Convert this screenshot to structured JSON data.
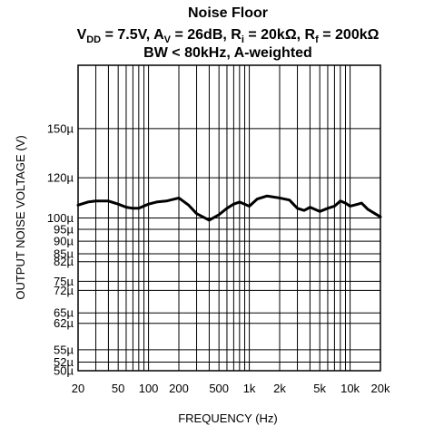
{
  "chart_data": {
    "type": "line",
    "title": "Noise Floor",
    "subtitle_line1": {
      "vdd_sym": "V",
      "vdd_sub": "DD",
      "vdd_val": " = 7.5V, ",
      "av_sym": "A",
      "av_sub": "V",
      "av_val": " = 26dB, ",
      "ri_sym": "R",
      "ri_sub": "i",
      "ri_val": " = 20kΩ, ",
      "rf_sym": "R",
      "rf_sub": "f",
      "rf_val": " = 200kΩ"
    },
    "subtitle_line2": "BW < 80kHz, A-weighted",
    "xlabel": "FREQUENCY (Hz)",
    "ylabel": "OUTPUT NOISE VOLTAGE (V)",
    "x_scale": "log",
    "xlim": [
      20,
      20000
    ],
    "ylim": [
      50,
      200
    ],
    "grid": true,
    "x_ticks": [
      {
        "value": 20,
        "label": "20"
      },
      {
        "value": 50,
        "label": "50"
      },
      {
        "value": 100,
        "label": "100"
      },
      {
        "value": 200,
        "label": "200"
      },
      {
        "value": 500,
        "label": "500"
      },
      {
        "value": 1000,
        "label": "1k"
      },
      {
        "value": 2000,
        "label": "2k"
      },
      {
        "value": 5000,
        "label": "5k"
      },
      {
        "value": 10000,
        "label": "10k"
      },
      {
        "value": 20000,
        "label": "20k"
      }
    ],
    "y_ticks": [
      {
        "value": 50,
        "label": "50µ"
      },
      {
        "value": 52,
        "label": "52µ"
      },
      {
        "value": 55,
        "label": "55µ"
      },
      {
        "value": 62,
        "label": "62µ"
      },
      {
        "value": 65,
        "label": "65µ"
      },
      {
        "value": 72,
        "label": "72µ"
      },
      {
        "value": 75,
        "label": "75µ"
      },
      {
        "value": 82,
        "label": "82µ"
      },
      {
        "value": 85,
        "label": "85µ"
      },
      {
        "value": 90,
        "label": "90µ"
      },
      {
        "value": 95,
        "label": "95µ"
      },
      {
        "value": 100,
        "label": "100µ"
      },
      {
        "value": 120,
        "label": "120µ"
      },
      {
        "value": 150,
        "label": "150µ"
      }
    ],
    "x_grid": [
      20,
      30,
      40,
      50,
      60,
      70,
      80,
      90,
      100,
      200,
      300,
      400,
      500,
      600,
      700,
      800,
      900,
      1000,
      2000,
      3000,
      4000,
      5000,
      6000,
      7000,
      8000,
      9000,
      10000,
      20000
    ],
    "y_grid": [
      50,
      52,
      55,
      62,
      65,
      72,
      75,
      82,
      85,
      90,
      95,
      100,
      120,
      150,
      200
    ],
    "series": [
      {
        "x": [
          20,
          25,
          30,
          40,
          50,
          60,
          70,
          80,
          100,
          120,
          150,
          200,
          250,
          300,
          400,
          500,
          600,
          700,
          800,
          1000,
          1200,
          1500,
          2000,
          2500,
          3000,
          3500,
          4000,
          5000,
          6000,
          7000,
          8000,
          9000,
          10000,
          11000,
          12000,
          13000,
          15000,
          20000
        ],
        "y": [
          106,
          107.5,
          108,
          108,
          106.5,
          105,
          104.5,
          104.5,
          106.5,
          107.5,
          108,
          109.5,
          106,
          102,
          99,
          101.5,
          104.5,
          106.5,
          107.5,
          105.5,
          109,
          110.5,
          109.5,
          108.5,
          104.5,
          103.5,
          105,
          103,
          104.5,
          105.5,
          108,
          107,
          105.5,
          106,
          106.5,
          107,
          104,
          100.5
        ]
      }
    ],
    "colors": {
      "line": "#000000",
      "grid": "#000000",
      "background": "#ffffff"
    }
  }
}
